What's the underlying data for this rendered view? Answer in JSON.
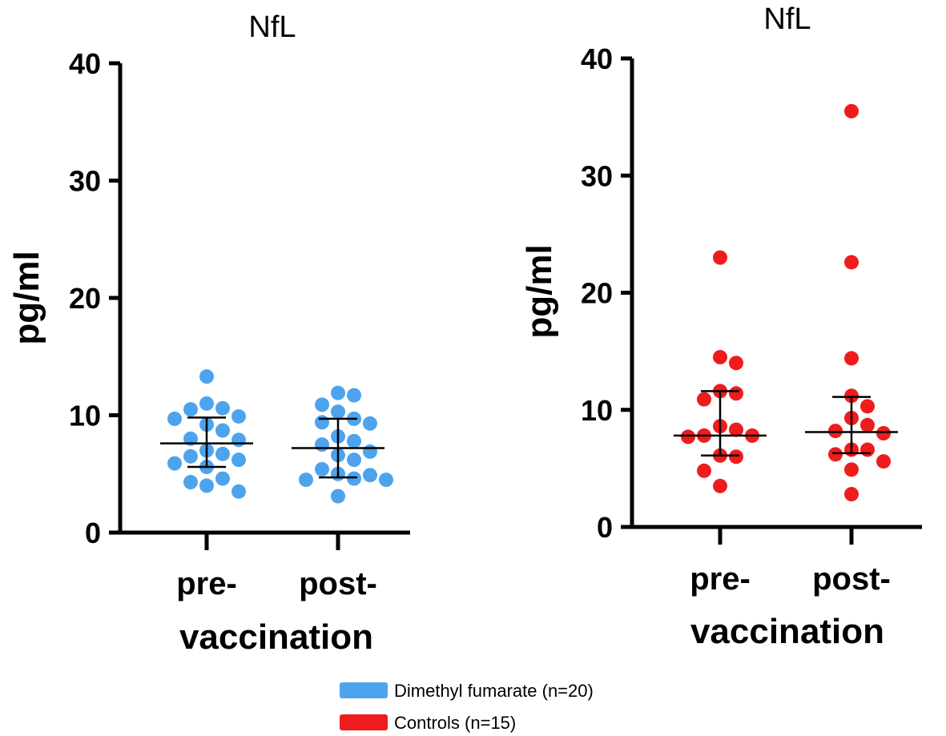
{
  "chart_data": [
    {
      "type": "scatter",
      "title": "NfL",
      "ylabel": "pg/ml",
      "xlabel": "vaccination",
      "categories": [
        "pre-",
        "post-"
      ],
      "ylim": [
        0,
        40
      ],
      "yticks": [
        0,
        10,
        20,
        30,
        40
      ],
      "color": "#4DA3EE",
      "series": [
        {
          "name": "pre-",
          "values": [
            13.3,
            10.5,
            11.0,
            10.6,
            9.2,
            9.9,
            9.7,
            8.7,
            8.0,
            7.9,
            6.7,
            7.0,
            6.5,
            6.2,
            5.6,
            5.9,
            4.6,
            4.3,
            4.0,
            3.5
          ],
          "median": 7.6,
          "q1": 5.6,
          "q3": 9.8
        },
        {
          "name": "post-",
          "values": [
            11.7,
            11.9,
            10.9,
            10.3,
            9.7,
            9.4,
            9.3,
            8.2,
            7.8,
            7.5,
            6.9,
            6.6,
            6.2,
            5.4,
            5.0,
            4.9,
            4.6,
            4.5,
            4.5,
            3.1
          ],
          "median": 7.2,
          "q1": 4.7,
          "q3": 9.7
        }
      ]
    },
    {
      "type": "scatter",
      "title": "NfL",
      "ylabel": "pg/ml",
      "xlabel": "vaccination",
      "categories": [
        "pre-",
        "post-"
      ],
      "ylim": [
        0,
        40
      ],
      "yticks": [
        0,
        10,
        20,
        30,
        40
      ],
      "color": "#EE1C1C",
      "series": [
        {
          "name": "pre-",
          "values": [
            23.0,
            14.5,
            14.0,
            11.6,
            11.4,
            10.9,
            8.6,
            8.3,
            7.8,
            7.7,
            7.8,
            6.1,
            6.0,
            4.8,
            3.5
          ],
          "median": 7.8,
          "q1": 6.1,
          "q3": 11.6
        },
        {
          "name": "post-",
          "values": [
            35.5,
            22.6,
            14.4,
            11.2,
            10.3,
            9.3,
            8.7,
            8.2,
            8.0,
            6.6,
            6.6,
            6.2,
            5.6,
            4.9,
            2.8
          ],
          "median": 8.1,
          "q1": 6.3,
          "q3": 11.1
        }
      ]
    }
  ],
  "legend": [
    {
      "label": "Dimethyl fumarate (n=20)",
      "color": "#4DA3EE"
    },
    {
      "label": "Controls (n=15)",
      "color": "#EE1C1C"
    }
  ]
}
